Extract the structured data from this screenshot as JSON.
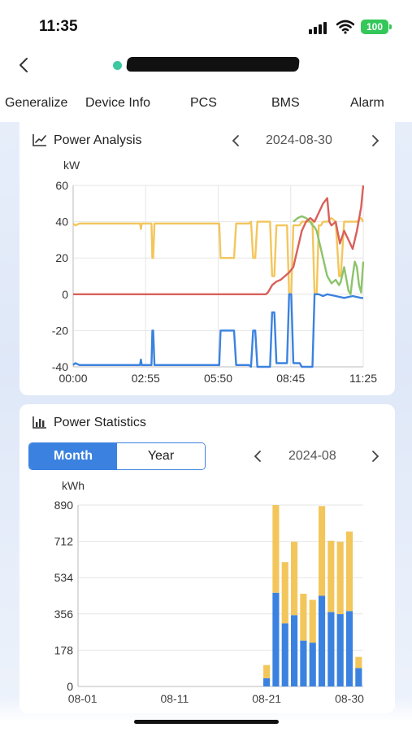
{
  "status_bar": {
    "time": "11:35",
    "battery": "100"
  },
  "tabs": [
    {
      "label": "Generalize",
      "active": true
    },
    {
      "label": "Device Info",
      "active": false
    },
    {
      "label": "PCS",
      "active": false
    },
    {
      "label": "BMS",
      "active": false
    },
    {
      "label": "Alarm",
      "active": false
    }
  ],
  "power_analysis": {
    "title": "Power Analysis",
    "date": "2024-08-30",
    "icon": "line-chart-icon"
  },
  "power_statistics": {
    "title": "Power Statistics",
    "date": "2024-08",
    "icon": "bar-chart-icon",
    "toggle": {
      "month": "Month",
      "year": "Year",
      "selected": "month"
    }
  },
  "colors": {
    "accent": "#3b82e0",
    "yellow": "#f3c65c",
    "red": "#d9605a",
    "green": "#8cc36c",
    "blue": "#3b82e0",
    "online": "#3cc8a0"
  },
  "chart_data": [
    {
      "type": "line",
      "ylabel": "kW",
      "ylim": [
        -40,
        60
      ],
      "yticks": [
        "60",
        "40",
        "20",
        "0",
        "-20",
        "-40"
      ],
      "xticks": [
        "00:00",
        "02:55",
        "05:50",
        "08:45",
        "11:25"
      ],
      "xlim_minutes": [
        0,
        685
      ],
      "grid": true,
      "series": [
        {
          "color": "#f3c65c",
          "x": [
            0,
            5,
            15,
            150,
            158,
            160,
            162,
            165,
            168,
            175,
            180,
            185,
            187,
            189,
            192,
            195,
            225,
            340,
            345,
            348,
            355,
            360,
            380,
            385,
            388,
            392,
            395,
            415,
            420,
            425,
            430,
            435,
            440,
            460,
            465,
            470,
            475,
            480,
            495,
            500,
            505,
            510,
            515,
            520,
            525,
            530,
            535,
            540,
            550,
            560,
            565,
            570,
            575,
            580,
            585,
            590,
            600,
            610,
            620,
            628,
            632,
            640,
            650,
            660,
            670,
            680,
            685
          ],
          "y": [
            39,
            38,
            39,
            39,
            39,
            36,
            39,
            39,
            39,
            39,
            39,
            39,
            20,
            20,
            39,
            39,
            39,
            39,
            39,
            20,
            20,
            20,
            20,
            39,
            39,
            39,
            39,
            39,
            40,
            20,
            20,
            40,
            40,
            40,
            40,
            10,
            10,
            38,
            38,
            38,
            38,
            0,
            0,
            38,
            38,
            38,
            38,
            40,
            40,
            40,
            40,
            0,
            0,
            38,
            38,
            40,
            40,
            42,
            40,
            10,
            10,
            40,
            40,
            40,
            40,
            42,
            40
          ]
        },
        {
          "color": "#8cc36c",
          "x": [
            520,
            530,
            540,
            550,
            560,
            565,
            570,
            575,
            580,
            590,
            600,
            610,
            620,
            628,
            632,
            640,
            650,
            655,
            660,
            665,
            670,
            675,
            680,
            685
          ],
          "y": [
            40,
            42,
            43,
            42,
            40,
            38,
            37,
            35,
            30,
            20,
            10,
            6,
            8,
            5,
            7,
            15,
            2,
            0,
            10,
            18,
            15,
            5,
            1,
            18
          ]
        },
        {
          "color": "#d9605a",
          "x": [
            0,
            100,
            200,
            300,
            400,
            455,
            460,
            470,
            480,
            490,
            500,
            510,
            520,
            530,
            540,
            550,
            560,
            570,
            580,
            590,
            600,
            605,
            610,
            620,
            630,
            640,
            650,
            660,
            670,
            680,
            685
          ],
          "y": [
            0,
            0,
            0,
            0,
            0,
            0,
            1,
            5,
            7,
            8,
            10,
            12,
            15,
            25,
            35,
            40,
            42,
            40,
            45,
            50,
            53,
            40,
            38,
            40,
            28,
            35,
            30,
            25,
            35,
            48,
            60
          ]
        },
        {
          "color": "#3b82e0",
          "x": [
            0,
            5,
            15,
            150,
            158,
            160,
            162,
            165,
            168,
            175,
            180,
            185,
            187,
            189,
            192,
            195,
            225,
            340,
            345,
            348,
            355,
            360,
            380,
            385,
            388,
            392,
            395,
            415,
            420,
            425,
            430,
            435,
            440,
            460,
            465,
            470,
            475,
            480,
            495,
            500,
            505,
            510,
            515,
            520,
            525,
            530,
            535,
            540,
            550,
            560,
            565,
            570,
            580,
            590,
            600,
            620,
            640,
            660,
            680,
            685
          ],
          "y": [
            -39,
            -38,
            -39,
            -39,
            -39,
            -36,
            -39,
            -39,
            -39,
            -39,
            -39,
            -39,
            -20,
            -20,
            -39,
            -39,
            -39,
            -39,
            -39,
            -20,
            -20,
            -20,
            -20,
            -39,
            -39,
            -39,
            -39,
            -39,
            -40,
            -20,
            -20,
            -40,
            -40,
            -40,
            -40,
            -10,
            -10,
            -38,
            -38,
            -38,
            -38,
            0,
            0,
            -38,
            -38,
            -38,
            -38,
            -40,
            -40,
            -40,
            -40,
            0,
            0,
            -1,
            0,
            -1,
            -2,
            -1,
            -2,
            -2
          ]
        }
      ]
    },
    {
      "type": "bar",
      "stacked": true,
      "ylabel": "kWh",
      "ylim": [
        0,
        890
      ],
      "yticks": [
        "890",
        "712",
        "534",
        "356",
        "178",
        "0"
      ],
      "xticks": [
        "08-01",
        "08-11",
        "08-21",
        "08-30"
      ],
      "categories": [
        "08-01",
        "08-02",
        "08-03",
        "08-04",
        "08-05",
        "08-06",
        "08-07",
        "08-08",
        "08-09",
        "08-10",
        "08-11",
        "08-12",
        "08-13",
        "08-14",
        "08-15",
        "08-16",
        "08-17",
        "08-18",
        "08-19",
        "08-20",
        "08-21",
        "08-22",
        "08-23",
        "08-24",
        "08-25",
        "08-26",
        "08-27",
        "08-28",
        "08-29",
        "08-30"
      ],
      "grid": true,
      "series": [
        {
          "color": "#3b82e0",
          "values": [
            0,
            0,
            0,
            0,
            0,
            0,
            0,
            0,
            0,
            0,
            0,
            0,
            0,
            0,
            0,
            0,
            0,
            0,
            0,
            0,
            40,
            460,
            310,
            350,
            225,
            215,
            445,
            365,
            355,
            370
          ]
        },
        {
          "color": "#f3c65c",
          "values": [
            0,
            0,
            0,
            0,
            0,
            0,
            0,
            0,
            0,
            0,
            0,
            0,
            0,
            0,
            0,
            0,
            0,
            0,
            0,
            0,
            65,
            430,
            300,
            360,
            230,
            210,
            440,
            350,
            355,
            390
          ]
        }
      ],
      "extra_last_bar": {
        "category": "08-31",
        "blue": 90,
        "yellow": 55
      }
    }
  ]
}
